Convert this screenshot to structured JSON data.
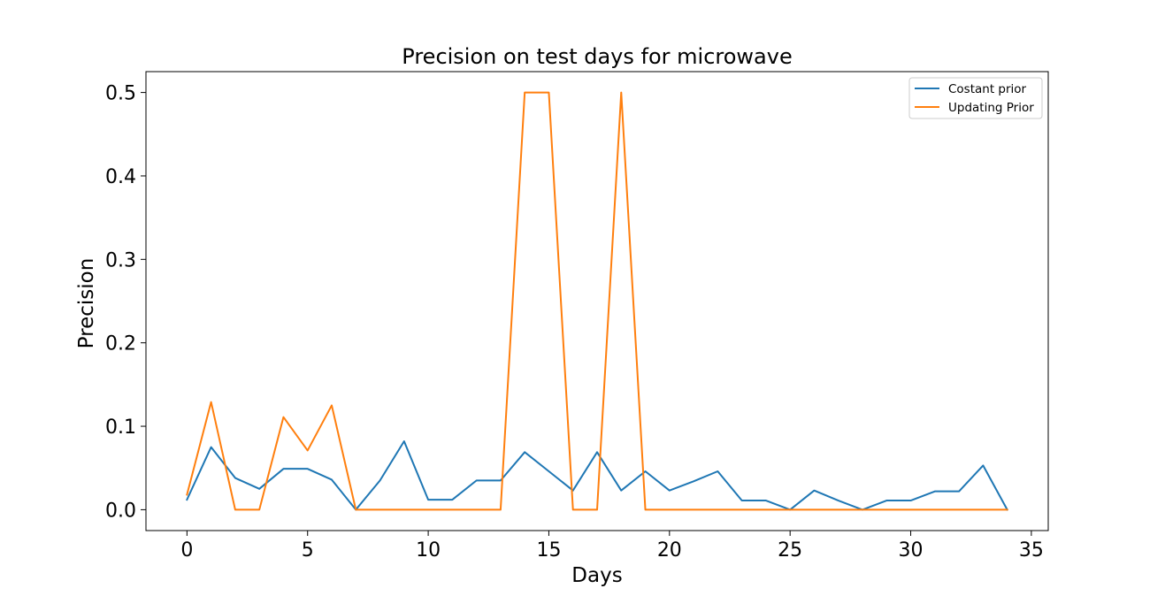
{
  "chart_data": {
    "type": "line",
    "title": "Precision on test days for microwave",
    "xlabel": "Days",
    "ylabel": "Precision",
    "xlim": [
      -1.7,
      35.7
    ],
    "ylim": [
      -0.025,
      0.525
    ],
    "xticks": [
      0,
      5,
      10,
      15,
      20,
      25,
      30,
      35
    ],
    "yticks": [
      0.0,
      0.1,
      0.2,
      0.3,
      0.4,
      0.5
    ],
    "ytick_labels": [
      "0.0",
      "0.1",
      "0.2",
      "0.3",
      "0.4",
      "0.5"
    ],
    "grid": false,
    "legend_position": "top-right",
    "x": [
      0,
      1,
      2,
      3,
      4,
      5,
      6,
      7,
      8,
      9,
      10,
      11,
      12,
      13,
      14,
      15,
      16,
      17,
      18,
      19,
      20,
      21,
      22,
      23,
      24,
      25,
      26,
      27,
      28,
      29,
      30,
      31,
      32,
      33,
      34
    ],
    "series": [
      {
        "name": "Costant prior",
        "color": "#1f77b4",
        "values": [
          0.012,
          0.075,
          0.038,
          0.025,
          0.049,
          0.049,
          0.036,
          0.0,
          0.035,
          0.082,
          0.012,
          0.012,
          0.035,
          0.035,
          0.069,
          0.046,
          0.023,
          0.069,
          0.023,
          0.046,
          0.023,
          0.034,
          0.046,
          0.011,
          0.011,
          0.0,
          0.023,
          0.011,
          0.0,
          0.011,
          0.011,
          0.022,
          0.022,
          0.053,
          0.0
        ]
      },
      {
        "name": "Updating Prior",
        "color": "#ff7f0e",
        "values": [
          0.018,
          0.129,
          0.0,
          0.0,
          0.111,
          0.071,
          0.125,
          0.0,
          0.0,
          0.0,
          0.0,
          0.0,
          0.0,
          0.0,
          0.5,
          0.5,
          0.0,
          0.0,
          0.5,
          0.0,
          0.0,
          0.0,
          0.0,
          0.0,
          0.0,
          0.0,
          0.0,
          0.0,
          0.0,
          0.0,
          0.0,
          0.0,
          0.0,
          0.0,
          0.0
        ]
      }
    ]
  }
}
